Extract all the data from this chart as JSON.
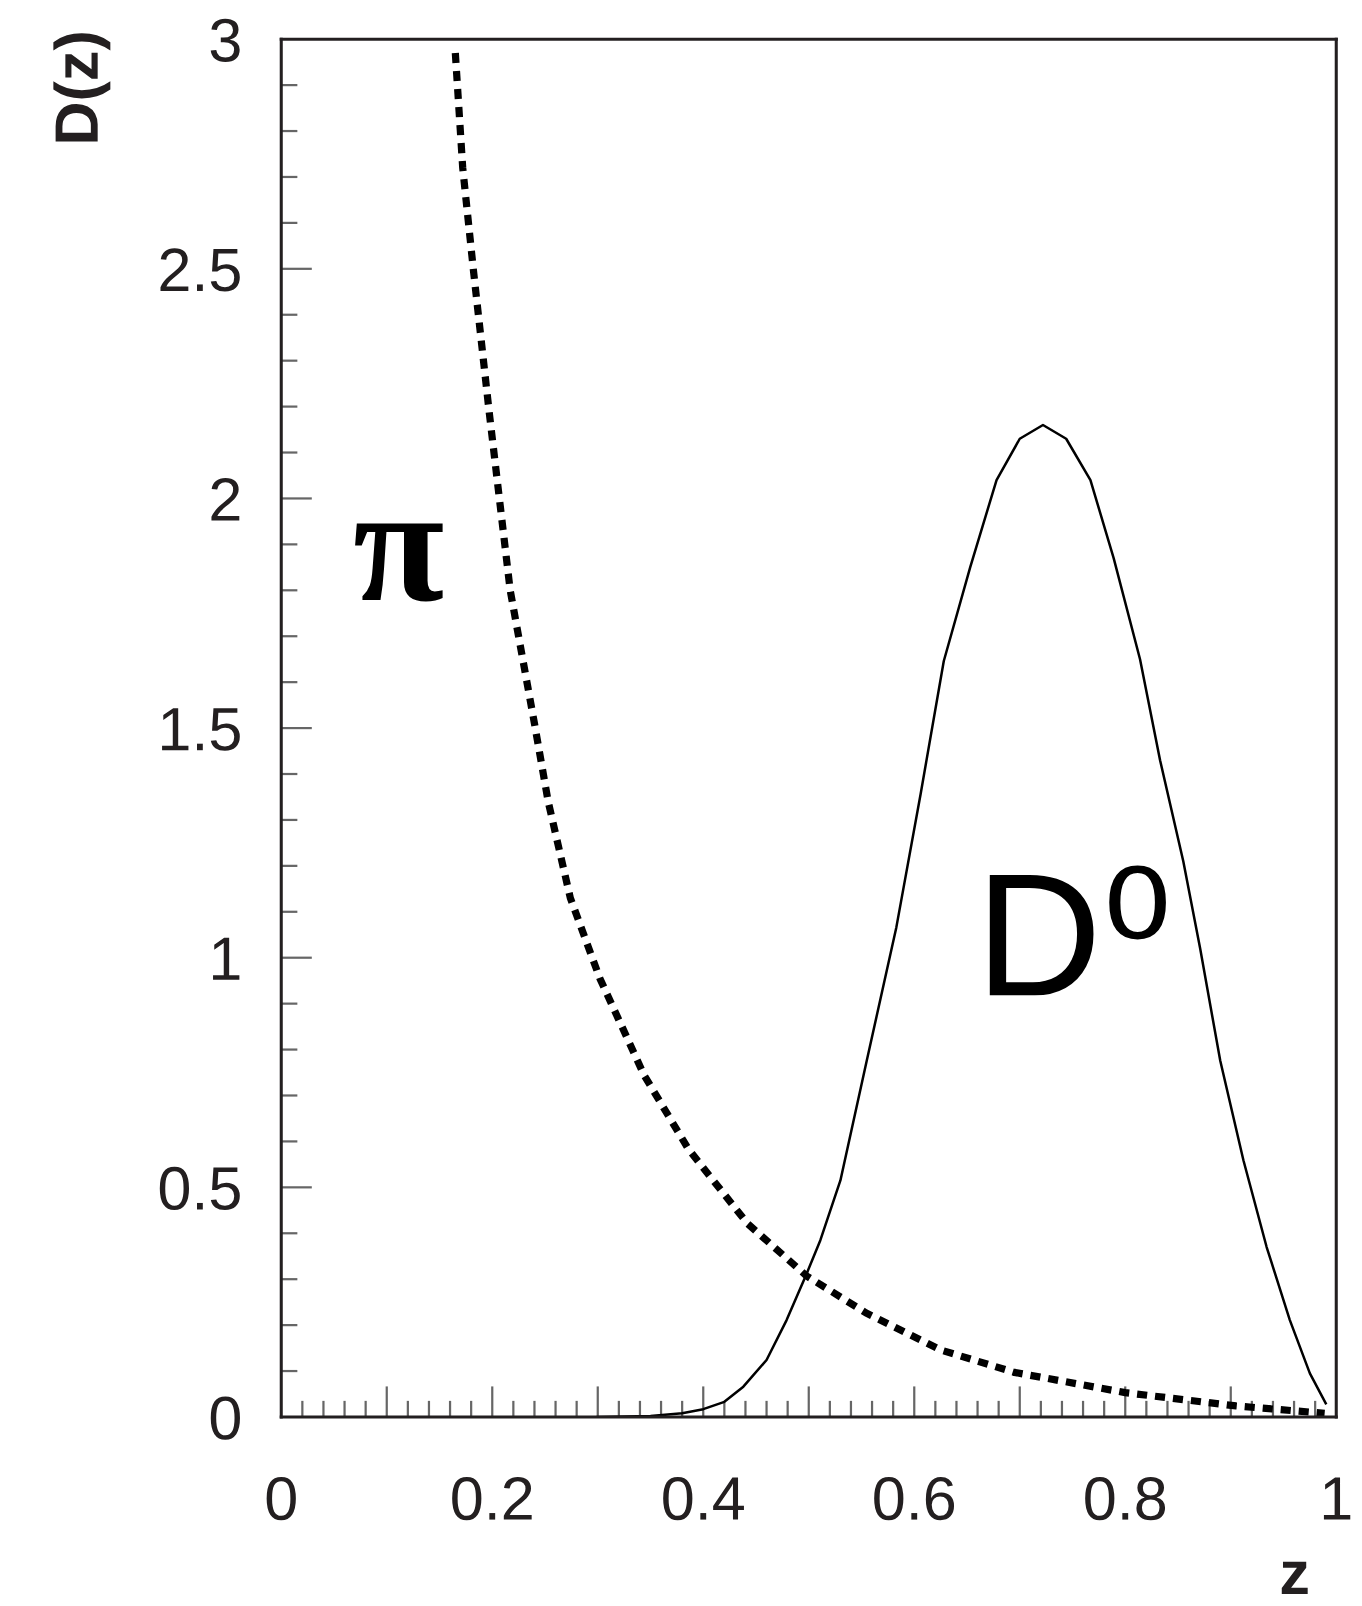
{
  "chart_data": {
    "type": "line",
    "xlabel": "z",
    "ylabel": "D(z)",
    "xlim": [
      0,
      1
    ],
    "ylim": [
      0,
      3
    ],
    "xticks": [
      0,
      {
        "value": 0.1,
        "label": null
      },
      0.2,
      {
        "value": 0.3,
        "label": null
      },
      0.4,
      {
        "value": 0.5,
        "label": null
      },
      0.6,
      {
        "value": 0.7,
        "label": null
      },
      0.8,
      {
        "value": 0.9,
        "label": null
      },
      1
    ],
    "yticks": [
      0,
      0.5,
      1,
      1.5,
      2,
      2.5,
      3
    ],
    "series": [
      {
        "name": "π",
        "color": "#000000",
        "line_style": "dotted",
        "x": [
          0.165,
          0.172,
          0.182,
          0.197,
          0.217,
          0.24,
          0.253,
          0.274,
          0.302,
          0.344,
          0.386,
          0.442,
          0.498,
          0.554,
          0.625,
          0.695,
          0.8,
          0.905,
          0.989
        ],
        "values": [
          2.97,
          2.72,
          2.5,
          2.19,
          1.8,
          1.51,
          1.34,
          1.13,
          0.955,
          0.744,
          0.583,
          0.421,
          0.307,
          0.227,
          0.146,
          0.097,
          0.053,
          0.024,
          0.008
        ]
      },
      {
        "name": "D⁰",
        "color": "#000000",
        "line_style": "solid",
        "x": [
          0.3,
          0.35,
          0.38,
          0.4,
          0.42,
          0.438,
          0.46,
          0.479,
          0.498,
          0.511,
          0.53,
          0.555,
          0.583,
          0.606,
          0.628,
          0.653,
          0.678,
          0.7,
          0.722,
          0.744,
          0.767,
          0.789,
          0.814,
          0.833,
          0.855,
          0.871,
          0.89,
          0.912,
          0.934,
          0.956,
          0.975,
          0.99
        ],
        "values": [
          0.0,
          0.002,
          0.008,
          0.017,
          0.033,
          0.066,
          0.124,
          0.211,
          0.312,
          0.385,
          0.515,
          0.776,
          1.066,
          1.356,
          1.646,
          1.85,
          2.04,
          2.13,
          2.16,
          2.13,
          2.04,
          1.87,
          1.65,
          1.43,
          1.21,
          1.02,
          0.776,
          0.559,
          0.37,
          0.211,
          0.095,
          0.03
        ]
      }
    ]
  }
}
